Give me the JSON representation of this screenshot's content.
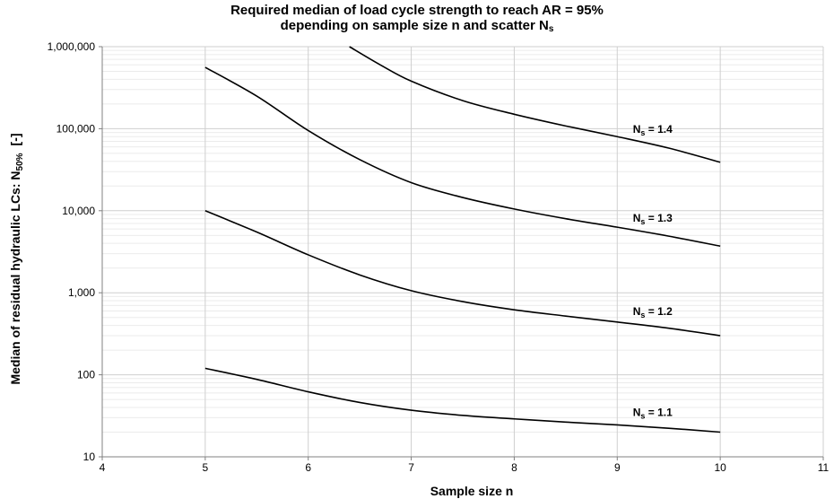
{
  "chart_data": {
    "type": "line",
    "title_line1": "Required median of load cycle strength to reach AR = 95%",
    "title_line2_prefix": "depending on sample size n and scatter N",
    "title_line2_sub": "s",
    "xlabel": "Sample size n",
    "ylabel_prefix": "Median of residual hydraulic LCs: N",
    "ylabel_sub": "50%",
    "ylabel_suffix": "[-]",
    "xlim": [
      4,
      11
    ],
    "ylim": [
      10,
      1000000
    ],
    "y_scale": "log",
    "grid": true,
    "x_ticks": [
      4,
      5,
      6,
      7,
      8,
      9,
      10,
      11
    ],
    "x_tick_labels": [
      "4",
      "5",
      "6",
      "7",
      "8",
      "9",
      "10",
      "11"
    ],
    "y_ticks": [
      10,
      100,
      1000,
      10000,
      100000,
      1000000
    ],
    "y_tick_labels": [
      "10",
      "100",
      "1,000",
      "10,000",
      "100,000",
      "1,000,000"
    ],
    "series": [
      {
        "name": "1.1",
        "points": [
          [
            5,
            120
          ],
          [
            5.5,
            88
          ],
          [
            6,
            62
          ],
          [
            6.5,
            46
          ],
          [
            7,
            37
          ],
          [
            7.5,
            32
          ],
          [
            8,
            29
          ],
          [
            8.5,
            26.5
          ],
          [
            9,
            24.5
          ],
          [
            9.5,
            22.3
          ],
          [
            10,
            20
          ]
        ]
      },
      {
        "name": "1.2",
        "points": [
          [
            5,
            10000
          ],
          [
            5.5,
            5500
          ],
          [
            6,
            2900
          ],
          [
            6.5,
            1650
          ],
          [
            7,
            1060
          ],
          [
            7.5,
            780
          ],
          [
            8,
            620
          ],
          [
            8.5,
            520
          ],
          [
            9,
            440
          ],
          [
            9.5,
            370
          ],
          [
            10,
            300
          ]
        ]
      },
      {
        "name": "1.3",
        "points": [
          [
            5,
            560000
          ],
          [
            5.5,
            250000
          ],
          [
            6,
            95000
          ],
          [
            6.5,
            42000
          ],
          [
            7,
            22000
          ],
          [
            7.5,
            14500
          ],
          [
            8,
            10500
          ],
          [
            8.5,
            8000
          ],
          [
            9,
            6300
          ],
          [
            9.5,
            4900
          ],
          [
            10,
            3700
          ]
        ]
      },
      {
        "name": "1.4",
        "points": [
          [
            6.4,
            1000000
          ],
          [
            6.7,
            600000
          ],
          [
            7,
            380000
          ],
          [
            7.5,
            220000
          ],
          [
            8,
            150000
          ],
          [
            8.5,
            108000
          ],
          [
            9,
            80000
          ],
          [
            9.5,
            58000
          ],
          [
            10,
            39000
          ]
        ]
      }
    ],
    "label_prefix": "N",
    "label_sub": "s",
    "label_eq": " = "
  }
}
